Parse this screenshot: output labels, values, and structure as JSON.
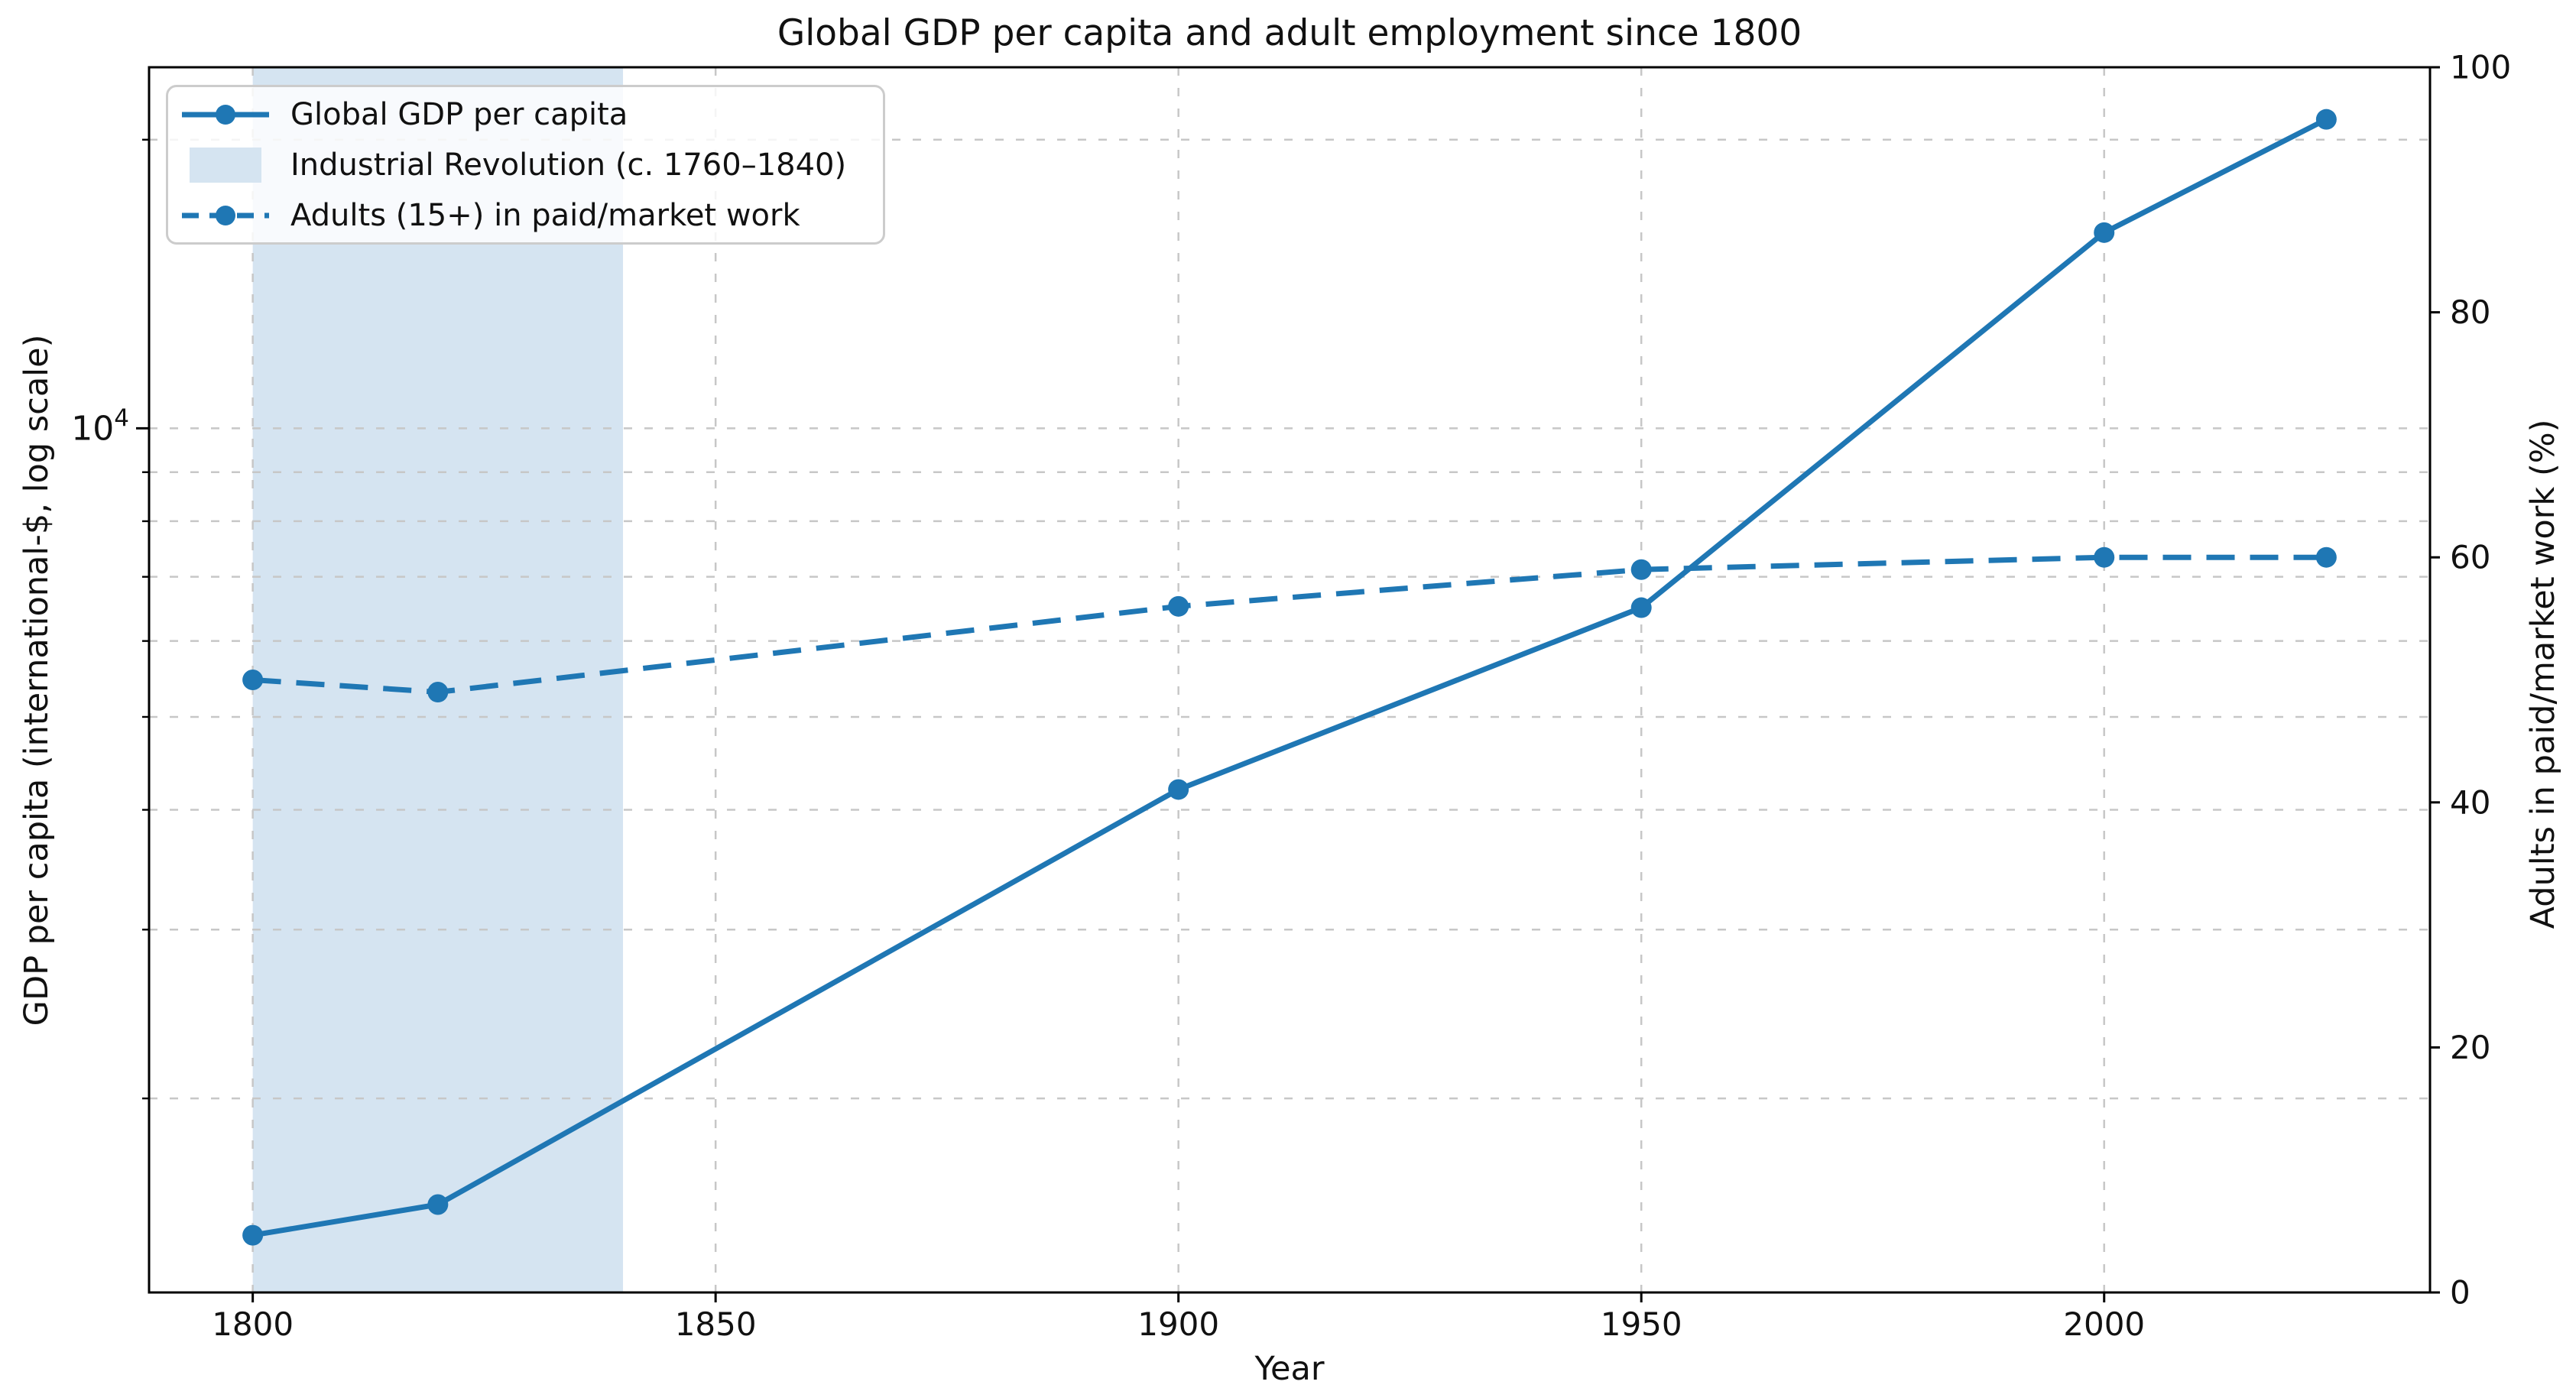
{
  "title": "Global GDP per capita and adult employment since 1800",
  "colors": {
    "line": "#1f77b4",
    "band": "#d5e4f1",
    "grid": "#c7c7c7",
    "spine": "#000000",
    "text": "#111111",
    "legend_border": "#cccccc"
  },
  "legend": {
    "position": "upper left",
    "items": [
      {
        "label": "Global GDP per capita",
        "icon": "solid-line-with-marker"
      },
      {
        "label": "Industrial Revolution (c. 1760–1840)",
        "icon": "filled-band-swatch"
      },
      {
        "label": "Adults (15+) in paid/market work",
        "icon": "dashed-line-with-marker"
      }
    ]
  },
  "chart_data": {
    "type": "line",
    "title": "Global GDP per capita and adult employment since 1800",
    "x_label": "Year",
    "y_left_label": "GDP per capita (international-$, log scale)",
    "y_right_label": "Adults in paid/market work (%)",
    "x": [
      1800,
      1820,
      1900,
      1950,
      2000,
      2024
    ],
    "series": [
      {
        "name": "Global GDP per capita",
        "axis": "left",
        "line_style": "solid",
        "marker": "circle",
        "values": [
          1440,
          1550,
          4200,
          6500,
          16000,
          21000
        ]
      },
      {
        "name": "Adults (15+) in paid/market work",
        "axis": "right",
        "line_style": "dashed",
        "marker": "circle",
        "values": [
          50,
          49,
          56,
          59,
          60,
          60
        ]
      }
    ],
    "shaded_band": {
      "label": "Industrial Revolution (c. 1760–1840)",
      "x_start": 1800,
      "x_end": 1840
    },
    "x_axis": {
      "ticks": [
        1800,
        1850,
        1900,
        1950,
        2000
      ],
      "lim": [
        1788.8,
        2035.2
      ],
      "grid": true
    },
    "y_left_axis": {
      "scale": "log",
      "lim": [
        1255,
        23800
      ],
      "major_tick_value": 10000,
      "major_tick_label_base": "10",
      "major_tick_label_exp": "4",
      "minor_ticks": [
        2000,
        3000,
        4000,
        5000,
        6000,
        7000,
        8000,
        9000,
        20000
      ],
      "grid": true
    },
    "y_right_axis": {
      "lim": [
        0,
        100
      ],
      "ticks": [
        0,
        20,
        40,
        60,
        80,
        100
      ],
      "grid": false
    }
  }
}
